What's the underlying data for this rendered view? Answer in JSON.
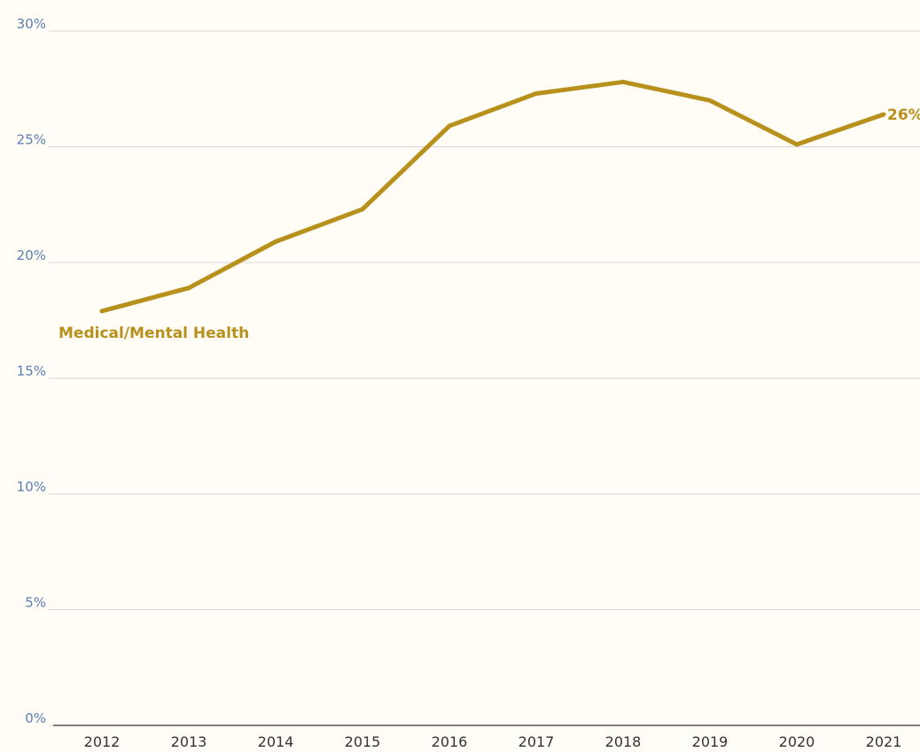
{
  "chart_data": {
    "type": "line",
    "x": [
      "2012",
      "2013",
      "2014",
      "2015",
      "2016",
      "2017",
      "2018",
      "2019",
      "2020",
      "2021"
    ],
    "series": [
      {
        "name": "Medical/Mental Health",
        "color": "#b8901c",
        "values": [
          17.9,
          18.9,
          20.9,
          22.3,
          25.9,
          27.3,
          27.8,
          27.0,
          25.1,
          26.4
        ],
        "value_labels": [
          null,
          null,
          null,
          null,
          null,
          null,
          null,
          null,
          null,
          "26%"
        ]
      }
    ],
    "ylim": [
      0,
      30
    ],
    "yticks": [
      {
        "value": 0,
        "label": "0%"
      },
      {
        "value": 5,
        "label": "5%"
      },
      {
        "value": 10,
        "label": "10%"
      },
      {
        "value": 15,
        "label": "15%"
      },
      {
        "value": 20,
        "label": "20%"
      },
      {
        "value": 25,
        "label": "25%"
      },
      {
        "value": 30,
        "label": "30%"
      }
    ],
    "grid": true
  }
}
